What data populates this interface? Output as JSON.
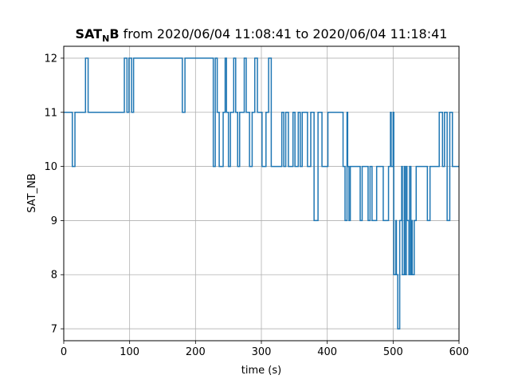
{
  "chart_data": {
    "type": "line",
    "title": {
      "prefix": "SAT",
      "subscript": "N",
      "prefix_suffix": "B",
      "rest": " from 2020/06/04 11:08:41 to 2020/06/04 11:18:41"
    },
    "xlabel": "time (s)",
    "ylabel": "SAT_NB",
    "xlim": [
      0,
      600
    ],
    "ylim": [
      6.78,
      12.22
    ],
    "xticks": [
      0,
      100,
      200,
      300,
      400,
      500,
      600
    ],
    "yticks": [
      7,
      8,
      9,
      10,
      11,
      12
    ],
    "grid": true,
    "step": "post",
    "color": "#1f77b4",
    "series": [
      {
        "x": [
          0,
          13,
          17,
          33,
          37,
          92,
          96,
          99,
          103,
          106,
          180,
          184,
          227,
          230,
          233,
          236,
          242,
          245,
          247,
          250,
          253,
          258,
          261,
          264,
          267,
          274,
          277,
          282,
          286,
          290,
          294,
          301,
          307,
          311,
          315,
          331,
          334,
          337,
          341,
          348,
          351,
          356,
          359,
          362,
          370,
          375,
          380,
          386,
          392,
          401,
          403,
          405,
          420,
          424,
          427,
          430,
          431,
          433,
          435,
          441,
          450,
          453,
          462,
          465,
          468,
          475,
          485,
          493,
          496,
          497,
          500,
          501,
          504,
          505,
          507,
          510,
          513,
          514,
          517,
          518,
          520,
          521,
          524,
          525,
          527,
          528,
          529,
          532,
          535,
          540,
          552,
          556,
          570,
          575,
          578,
          582,
          586,
          590,
          600
        ],
        "y": [
          11,
          10,
          11,
          12,
          11,
          12,
          11,
          12,
          11,
          12,
          11,
          12,
          10,
          12,
          11,
          10,
          11,
          12,
          11,
          10,
          11,
          12,
          11,
          10,
          11,
          12,
          11,
          10,
          11,
          12,
          11,
          10,
          11,
          12,
          10,
          11,
          10,
          11,
          10,
          11,
          10,
          11,
          10,
          11,
          10,
          11,
          9,
          11,
          10,
          11,
          11,
          11,
          11,
          10,
          9,
          11,
          10,
          9,
          10,
          10,
          9,
          10,
          9,
          10,
          9,
          10,
          9,
          10,
          11,
          10,
          11,
          8,
          9,
          8,
          7,
          9,
          10,
          8,
          10,
          8,
          10,
          9,
          8,
          10,
          8,
          9,
          8,
          9,
          10,
          10,
          9,
          10,
          11,
          10,
          11,
          9,
          11,
          10,
          10
        ]
      }
    ]
  }
}
